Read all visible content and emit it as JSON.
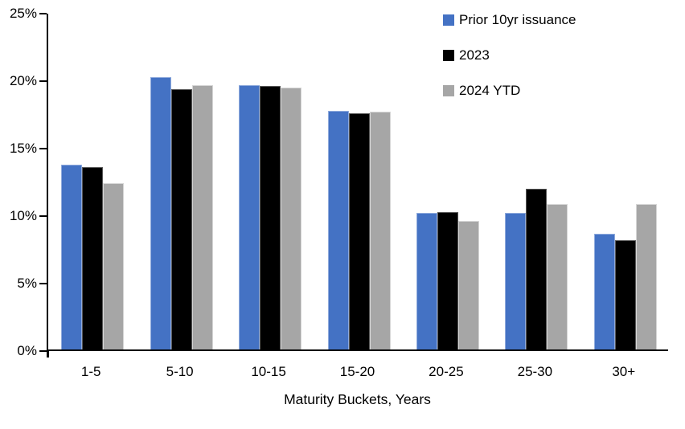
{
  "colors": {
    "background": "#ffffff",
    "axis": "#000000",
    "text": "#000000"
  },
  "chart_data": {
    "type": "bar",
    "categories": [
      "1-5",
      "5-10",
      "10-15",
      "15-20",
      "20-25",
      "25-30",
      "30+"
    ],
    "series": [
      {
        "name": "Prior 10yr issuance",
        "color": "#4472C4",
        "edge": "#8FAADC",
        "values": [
          13.7,
          20.2,
          19.6,
          17.7,
          10.1,
          10.1,
          8.6
        ]
      },
      {
        "name": "2023",
        "color": "#000000",
        "edge": "#595959",
        "values": [
          13.5,
          19.3,
          19.5,
          17.5,
          10.2,
          11.9,
          8.1
        ]
      },
      {
        "name": "2024 YTD",
        "color": "#A6A6A6",
        "edge": "#D6D6D6",
        "values": [
          12.3,
          19.6,
          19.4,
          17.6,
          9.5,
          10.8,
          10.8
        ]
      }
    ],
    "title": "",
    "xlabel": "Maturity Buckets, Years",
    "ylabel": "",
    "ylim": [
      0,
      25
    ],
    "ytick_step": 5,
    "ytick_labels": [
      "0%",
      "5%",
      "10%",
      "15%",
      "20%",
      "25%"
    ],
    "grid": false,
    "legend_position": "top-right"
  }
}
